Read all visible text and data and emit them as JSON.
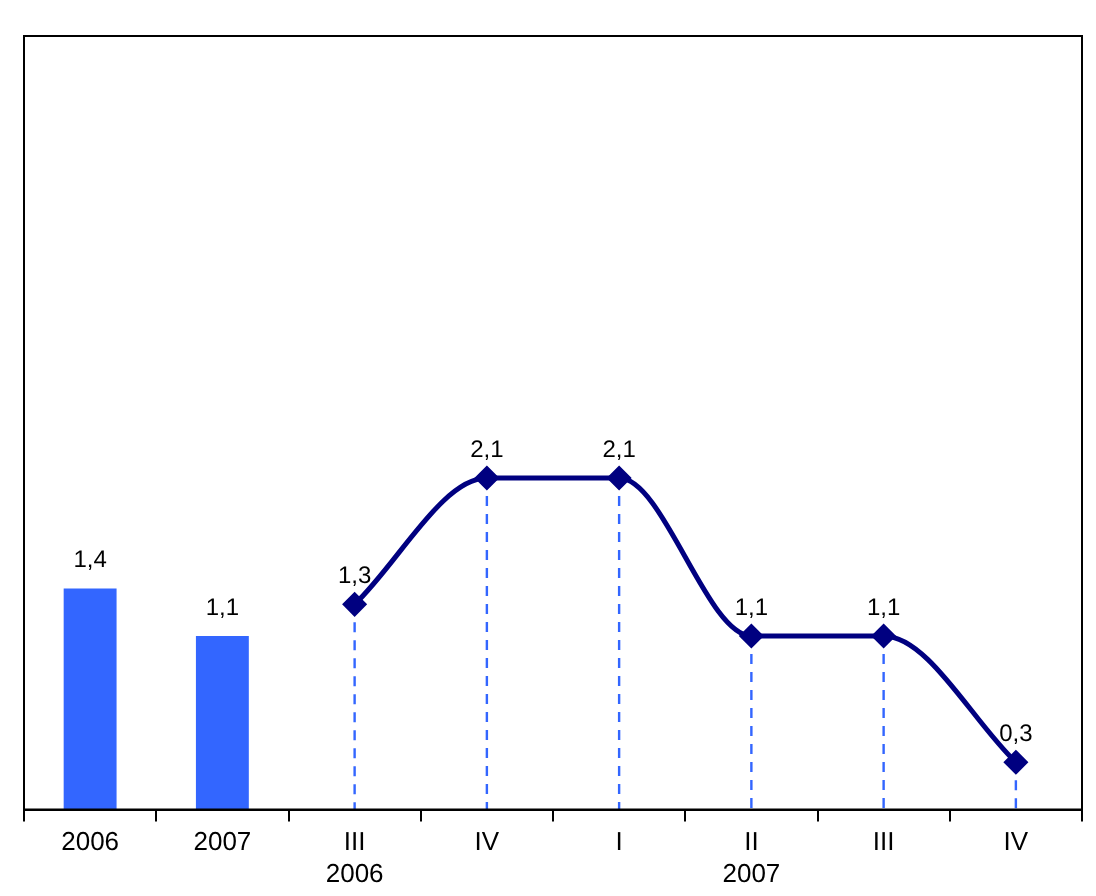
{
  "chart_data": {
    "type": "bar",
    "categories": [
      "2006",
      "2007",
      "III\n2006",
      "IV",
      "I",
      "II\n2007",
      "III",
      "IV"
    ],
    "series": [
      {
        "color": "#3366ff",
        "values": [
          1.4,
          1.1,
          null,
          null,
          null,
          null,
          null,
          null
        ],
        "value_labels": [
          "1,4",
          "1,1",
          null,
          null,
          null,
          null,
          null,
          null
        ]
      },
      {
        "type": "line",
        "color": "#000080",
        "marker": "diamond",
        "values": [
          null,
          null,
          1.3,
          2.1,
          2.1,
          1.1,
          1.1,
          0.3
        ],
        "value_labels": [
          null,
          null,
          "1,3",
          "2,1",
          "2,1",
          "1,1",
          "1,1",
          "0,3"
        ]
      }
    ],
    "ylim": [
      0,
      4.9
    ],
    "tick_labels": "x",
    "grid": false,
    "legend": false
  }
}
